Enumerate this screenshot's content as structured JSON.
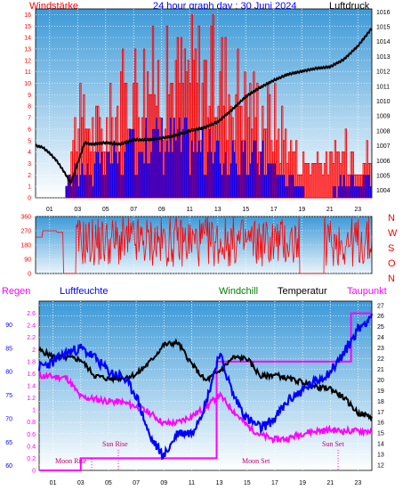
{
  "header": {
    "title": "24 hour graph day : 30 Juni 2024",
    "left_label": "Windstärke",
    "right_label": "Luftdruck"
  },
  "direction_labels": [
    "N",
    "W",
    "S",
    "O",
    "N"
  ],
  "lower_labels": {
    "regen": "Regen",
    "luftfeuchte": "Luftfeuchte",
    "windchill": "Windchill",
    "temperatur": "Temperatur",
    "taupunkt": "Taupunkt"
  },
  "annotations": {
    "moon_rise": "Moon Rise",
    "sun_rise": "Sun Rise",
    "moon_set": "Moon Set",
    "sun_set": "Sun Set"
  },
  "colors": {
    "wind": "#ff0000",
    "gust": "#0000ff",
    "pressure": "#000000",
    "direction": "#ff0000",
    "humidity": "#0000ff",
    "temperature": "#000000",
    "dewpoint": "#ff00ff",
    "rain": "#ff00ff",
    "sky_top": "#3d9ad8",
    "sky_bottom": "#ffffff"
  },
  "chart_data": [
    {
      "type": "bar",
      "name": "wind",
      "x_ticks": [
        "01",
        "03",
        "05",
        "07",
        "09",
        "11",
        "13",
        "15",
        "17",
        "19",
        "21",
        "23"
      ],
      "ylim": [
        0,
        16.5
      ],
      "y_ticks": [
        "0",
        "1",
        "2",
        "3",
        "4",
        "5",
        "6",
        "7",
        "8",
        "9",
        "10",
        "11",
        "12",
        "13",
        "14",
        "15",
        "16"
      ],
      "y2lim": [
        1003.5,
        1016.2
      ],
      "y2_ticks": [
        "1004",
        "1005",
        "1006",
        "1007",
        "1008",
        "1009",
        "1010",
        "1011",
        "1012",
        "1013",
        "1014",
        "1015",
        "1016"
      ],
      "pressure_hpa": [
        [
          0,
          1007.0
        ],
        [
          0.5,
          1006.9
        ],
        [
          1,
          1006.5
        ],
        [
          1.5,
          1006.0
        ],
        [
          2,
          1005.3
        ],
        [
          2.5,
          1004.5
        ],
        [
          3,
          1005.8
        ],
        [
          3.5,
          1007.2
        ],
        [
          4,
          1007.1
        ],
        [
          5,
          1007.2
        ],
        [
          6,
          1007.1
        ],
        [
          7,
          1007.4
        ],
        [
          8,
          1007.4
        ],
        [
          9,
          1007.5
        ],
        [
          10,
          1007.7
        ],
        [
          11,
          1008.0
        ],
        [
          12,
          1008.2
        ],
        [
          13,
          1008.6
        ],
        [
          14,
          1009.4
        ],
        [
          15,
          1010.3
        ],
        [
          16,
          1010.9
        ],
        [
          17,
          1011.4
        ],
        [
          18,
          1011.8
        ],
        [
          19,
          1012.0
        ],
        [
          20,
          1012.2
        ],
        [
          21,
          1012.3
        ],
        [
          22,
          1012.8
        ],
        [
          23,
          1013.7
        ],
        [
          24,
          1014.9
        ]
      ],
      "wind_knots": [
        [
          0,
          0
        ],
        [
          2,
          0
        ],
        [
          2.5,
          2
        ],
        [
          3,
          3
        ],
        [
          4,
          3
        ],
        [
          6,
          4
        ],
        [
          8,
          6
        ],
        [
          10,
          6
        ],
        [
          12,
          5
        ],
        [
          14,
          4
        ],
        [
          16,
          4
        ],
        [
          18,
          2
        ],
        [
          20,
          0
        ],
        [
          21,
          0
        ],
        [
          22,
          2
        ],
        [
          24,
          2
        ]
      ],
      "gust_knots": [
        [
          0,
          0
        ],
        [
          2,
          0
        ],
        [
          3,
          9
        ],
        [
          5,
          8
        ],
        [
          7,
          14
        ],
        [
          9,
          14
        ],
        [
          11,
          15
        ],
        [
          13,
          15
        ],
        [
          15,
          12
        ],
        [
          17,
          10
        ],
        [
          19,
          4
        ],
        [
          21,
          4
        ],
        [
          23,
          6
        ],
        [
          24,
          4
        ]
      ]
    },
    {
      "type": "scatter",
      "name": "wind direction",
      "y_ticks": [
        "0",
        "90",
        "180",
        "270",
        "360"
      ],
      "ylim": [
        0,
        360
      ]
    },
    {
      "type": "line",
      "name": "temperature / humidity / rain",
      "x_ticks": [
        "01",
        "03",
        "05",
        "07",
        "09",
        "11",
        "13",
        "15",
        "17",
        "19",
        "21",
        "23"
      ],
      "humidity_ylim": [
        59,
        95
      ],
      "humidity_ticks": [
        "60",
        "65",
        "70",
        "75",
        "80",
        "85",
        "90"
      ],
      "rain_ylim": [
        0,
        2.8
      ],
      "rain_ticks": [
        "0",
        "0.2",
        "0.4",
        "0.6",
        "0.8",
        "1",
        "1.2",
        "1.4",
        "1.6",
        "1.8",
        "2",
        "2.2",
        "2.4",
        "2.6"
      ],
      "temp_ylim": [
        11.5,
        27.4
      ],
      "temp_ticks": [
        "12",
        "13",
        "14",
        "15",
        "16",
        "17",
        "18",
        "19",
        "20",
        "21",
        "22",
        "23",
        "24",
        "25",
        "26",
        "27"
      ],
      "temperature_c": [
        [
          0,
          22.8
        ],
        [
          1,
          22.2
        ],
        [
          2,
          22.1
        ],
        [
          3,
          21.9
        ],
        [
          4,
          20.4
        ],
        [
          5,
          20.1
        ],
        [
          6,
          20.2
        ],
        [
          7,
          20.5
        ],
        [
          8,
          21.7
        ],
        [
          9,
          23.3
        ],
        [
          10,
          23.5
        ],
        [
          11,
          21.5
        ],
        [
          12,
          19.9
        ],
        [
          13,
          20.8
        ],
        [
          14,
          22.1
        ],
        [
          15,
          22.0
        ],
        [
          16,
          20.3
        ],
        [
          17,
          20.5
        ],
        [
          18,
          20.1
        ],
        [
          19,
          19.8
        ],
        [
          20,
          19.3
        ],
        [
          21,
          19.2
        ],
        [
          22,
          18.3
        ],
        [
          23,
          16.9
        ],
        [
          24,
          16.5
        ]
      ],
      "dewpoint_c": [
        [
          0,
          20.4
        ],
        [
          1,
          20.3
        ],
        [
          2,
          20.2
        ],
        [
          3,
          18.4
        ],
        [
          4,
          18.2
        ],
        [
          5,
          18.0
        ],
        [
          6,
          17.9
        ],
        [
          7,
          17.5
        ],
        [
          8,
          16.9
        ],
        [
          9,
          15.9
        ],
        [
          10,
          16.0
        ],
        [
          11,
          16.6
        ],
        [
          12,
          17.4
        ],
        [
          13,
          18.6
        ],
        [
          14,
          17.1
        ],
        [
          15,
          15.7
        ],
        [
          16,
          14.8
        ],
        [
          17,
          14.4
        ],
        [
          18,
          14.5
        ],
        [
          19,
          15.0
        ],
        [
          20,
          15.2
        ],
        [
          21,
          15.3
        ],
        [
          22,
          15.2
        ],
        [
          23,
          15.2
        ],
        [
          24,
          15.2
        ]
      ],
      "humidity_pct": [
        [
          0,
          81
        ],
        [
          1,
          82
        ],
        [
          2,
          84
        ],
        [
          3,
          85
        ],
        [
          4,
          83
        ],
        [
          5,
          80
        ],
        [
          6,
          79
        ],
        [
          7,
          75
        ],
        [
          8,
          66
        ],
        [
          9,
          62
        ],
        [
          10,
          67
        ],
        [
          11,
          67
        ],
        [
          12,
          73
        ],
        [
          13,
          84
        ],
        [
          14,
          75
        ],
        [
          15,
          70
        ],
        [
          16,
          68
        ],
        [
          17,
          70
        ],
        [
          18,
          74
        ],
        [
          19,
          76
        ],
        [
          20,
          78
        ],
        [
          21,
          80
        ],
        [
          22,
          84
        ],
        [
          23,
          89
        ],
        [
          24,
          92
        ]
      ],
      "rain_mm": [
        [
          0,
          0
        ],
        [
          3,
          0
        ],
        [
          3,
          0.2
        ],
        [
          12.8,
          0.2
        ],
        [
          12.8,
          1.8
        ],
        [
          22.5,
          1.8
        ],
        [
          22.5,
          2.6
        ],
        [
          24,
          2.6
        ]
      ]
    }
  ]
}
